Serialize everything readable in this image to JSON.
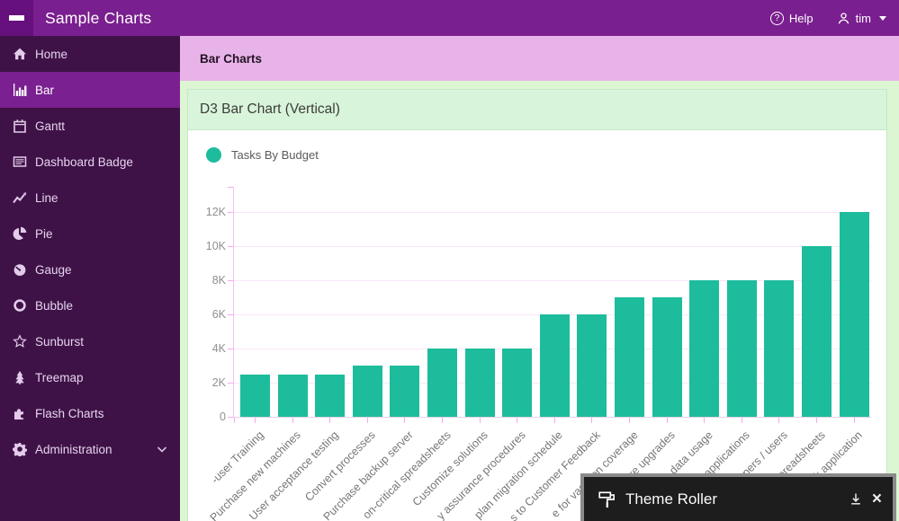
{
  "topbar": {
    "title": "Sample Charts",
    "help_label": "Help",
    "user_label": "tim"
  },
  "sidebar": {
    "items": [
      {
        "label": "Home",
        "icon": "home",
        "active": false
      },
      {
        "label": "Bar",
        "icon": "bar-chart",
        "active": true
      },
      {
        "label": "Gantt",
        "icon": "calendar",
        "active": false
      },
      {
        "label": "Dashboard Badge",
        "icon": "list",
        "active": false
      },
      {
        "label": "Line",
        "icon": "line-chart",
        "active": false
      },
      {
        "label": "Pie",
        "icon": "pie-chart",
        "active": false
      },
      {
        "label": "Gauge",
        "icon": "gauge",
        "active": false
      },
      {
        "label": "Bubble",
        "icon": "circle",
        "active": false
      },
      {
        "label": "Sunburst",
        "icon": "star",
        "active": false
      },
      {
        "label": "Treemap",
        "icon": "tree",
        "active": false
      },
      {
        "label": "Flash Charts",
        "icon": "puzzle",
        "active": false
      },
      {
        "label": "Administration",
        "icon": "gear",
        "active": false,
        "chevron": true
      }
    ]
  },
  "page": {
    "header": "Bar Charts"
  },
  "panel": {
    "title": "D3 Bar Chart (Vertical)"
  },
  "chart_data": {
    "type": "bar",
    "series": [
      {
        "name": "Tasks By Budget",
        "values": [
          2500,
          2500,
          2500,
          3000,
          3000,
          4000,
          4000,
          4000,
          6000,
          6000,
          7000,
          7000,
          8000,
          8000,
          8000,
          10000,
          12000
        ]
      }
    ],
    "categories": [
      "-user Training",
      "Purchase new machines",
      "User acceptance testing",
      "Convert processes",
      "Purchase backup server",
      "on-critical spreadsheets",
      "Customize solutions",
      "y assurance procedures",
      "plan migration schedule",
      "s to Customer Feedback",
      "e for vacation coverage",
      "are upgrades",
      "p data usage",
      "applications",
      "opers / users",
      "spreadsheets",
      "k application"
    ],
    "ytick_labels": [
      "0",
      "2K",
      "4K",
      "6K",
      "8K",
      "10K",
      "12K"
    ],
    "ytick_values": [
      0,
      2000,
      4000,
      6000,
      8000,
      10000,
      12000
    ],
    "ylim": [
      0,
      13000
    ],
    "xlabel": "",
    "ylabel": "",
    "grid": true,
    "legend_position": "top-left",
    "bar_color": "#1dbc9c"
  },
  "theme_roller": {
    "title": "Theme Roller"
  },
  "colors": {
    "topbar": "#7a1f8f",
    "topbar_button": "#66107e",
    "sidebar": "#3e1247",
    "sidebar_active": "#7a2090",
    "page_header": "#e7b3e8",
    "content_bg": "#dcf6d3",
    "card_header": "#d8f4da",
    "card_border": "#c6e7c8",
    "bar": "#1dbc9c",
    "grid_line": "#fbe6fa",
    "axis_tick": "#f5a9ee",
    "axis_line": "#f6c3f0",
    "theme_roller_bg": "#1d1d1d"
  }
}
